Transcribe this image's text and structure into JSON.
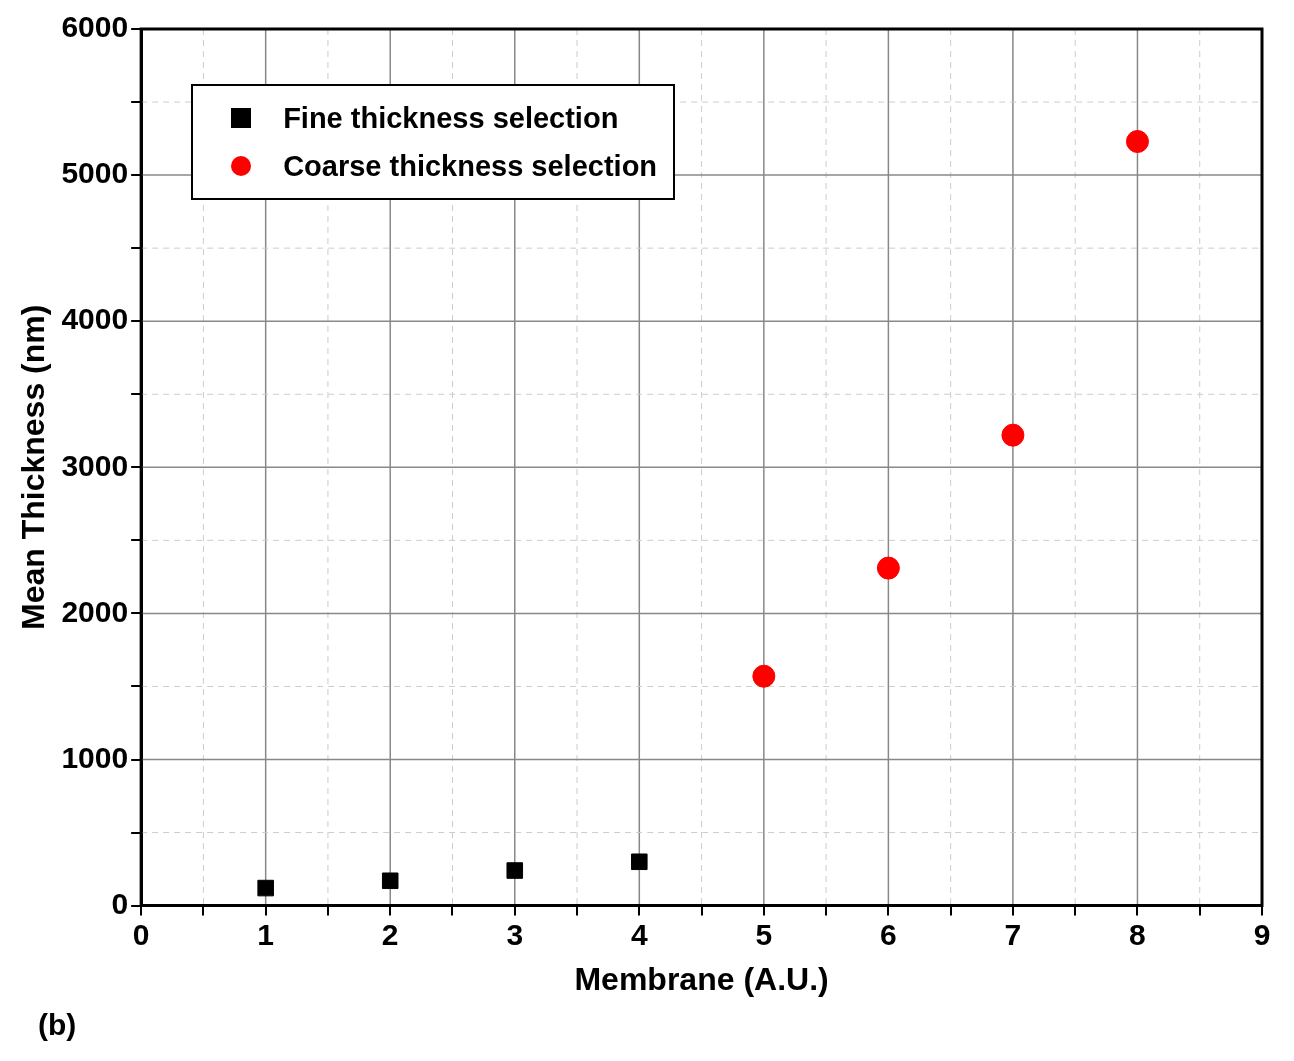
{
  "chart_data": {
    "type": "scatter",
    "xlabel": "Membrane (A.U.)",
    "ylabel": "Mean Thickness (nm)",
    "annotations": [
      "(b)"
    ],
    "xlim": [
      0,
      9
    ],
    "xticks": [
      0,
      {
        "value": 0.5,
        "label": null
      },
      1,
      {
        "value": 1.5,
        "label": null
      },
      2,
      {
        "value": 2.5,
        "label": null
      },
      3,
      {
        "value": 3.5,
        "label": null
      },
      4,
      {
        "value": 4.5,
        "label": null
      },
      5,
      {
        "value": 5.5,
        "label": null
      },
      6,
      {
        "value": 6.5,
        "label": null
      },
      7,
      {
        "value": 7.5,
        "label": null
      },
      8,
      {
        "value": 8.5,
        "label": null
      },
      9
    ],
    "ylim": [
      0,
      6000
    ],
    "yticks": [
      0,
      {
        "value": 500,
        "label": null
      },
      1000,
      {
        "value": 1500,
        "label": null
      },
      2000,
      {
        "value": 2500,
        "label": null
      },
      3000,
      {
        "value": 3500,
        "label": null
      },
      4000,
      {
        "value": 4500,
        "label": null
      },
      5000,
      {
        "value": 5500,
        "label": null
      },
      6000
    ],
    "grid": true,
    "legend": "top left",
    "series": [
      {
        "name": "Fine thickness selection",
        "color": "#000000",
        "marker": "square",
        "x": [
          1,
          2,
          3,
          4
        ],
        "values": [
          120,
          170,
          240,
          300
        ]
      },
      {
        "name": "Coarse thickness selection",
        "color": "#ff0000",
        "marker": "circle",
        "x": [
          5,
          6,
          7,
          8
        ],
        "values": [
          1570,
          2310,
          3220,
          5230
        ]
      }
    ]
  }
}
